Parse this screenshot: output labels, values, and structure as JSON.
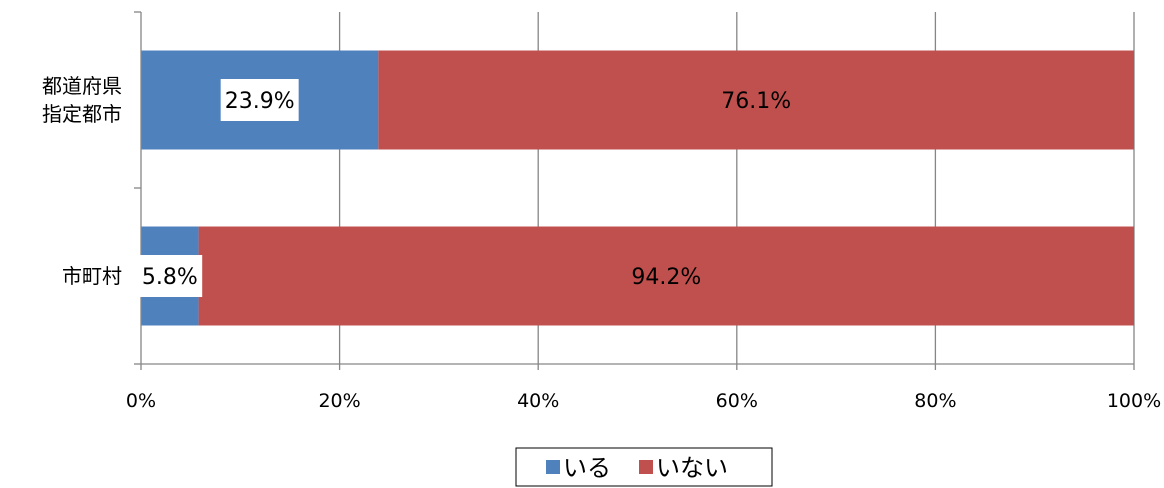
{
  "chart_data": {
    "type": "bar",
    "orientation": "horizontal",
    "stacked": "percent",
    "categories": [
      "都道府県\n指定都市",
      "市町村"
    ],
    "series": [
      {
        "name": "いる",
        "color": "#4f81bd",
        "values": [
          23.9,
          5.8
        ],
        "labels": [
          "23.9%",
          "5.8%"
        ]
      },
      {
        "name": "いない",
        "color": "#c0504d",
        "values": [
          76.1,
          94.2
        ],
        "labels": [
          "76.1%",
          "94.2%"
        ]
      }
    ],
    "x_ticks": [
      "0%",
      "20%",
      "40%",
      "60%",
      "80%",
      "100%"
    ],
    "xlim": [
      0,
      100
    ],
    "grid": true,
    "legend": {
      "position": "bottom"
    }
  }
}
